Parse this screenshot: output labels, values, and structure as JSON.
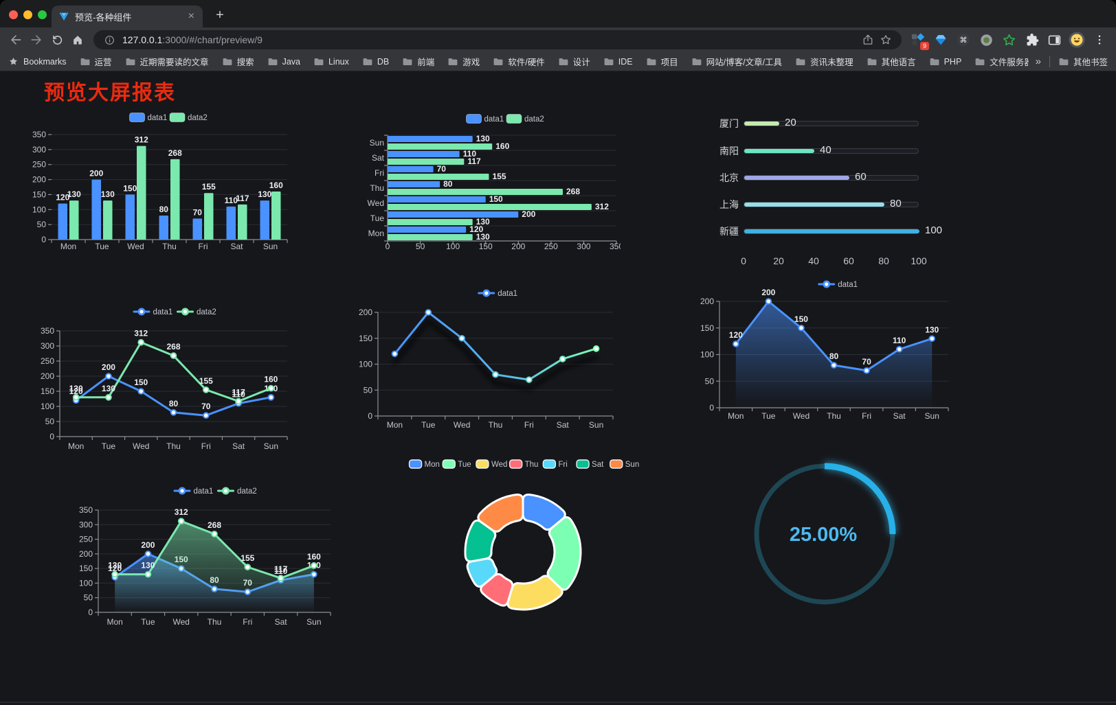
{
  "browser": {
    "tab_title": "预览-各种组件",
    "close_tab_glyph": "×",
    "new_tab_glyph": "+",
    "url_host": "127.0.0.1",
    "url_rest": ":3000/#/chart/preview/9",
    "bookmarks_label": "Bookmarks",
    "bookmark_folders": [
      "运营",
      "近期需要读的文章",
      "搜索",
      "Java",
      "Linux",
      "DB",
      "前端",
      "游戏",
      "软件/硬件",
      "设计",
      "IDE",
      "项目",
      "网站/博客/文章/工具",
      "资讯未整理",
      "其他语言",
      "PHP",
      "文件服务器"
    ],
    "bookmarks_overflow_glyph": "»",
    "other_bookmarks_label": "其他书签",
    "extension_badge": "9"
  },
  "page": {
    "title": "预览大屏报表"
  },
  "colors": {
    "accent_blue": "#4992ff",
    "accent_green": "#7be8ae",
    "title_red": "#e92b10",
    "page_bg": "#16171b"
  },
  "chart_data": [
    {
      "id": "bar-grouped",
      "type": "bar",
      "orientation": "vertical",
      "categories": [
        "Mon",
        "Tue",
        "Wed",
        "Thu",
        "Fri",
        "Sat",
        "Sun"
      ],
      "series": [
        {
          "name": "data1",
          "color": "#4992ff",
          "values": [
            120,
            200,
            150,
            80,
            70,
            110,
            130
          ]
        },
        {
          "name": "data2",
          "color": "#7be8ae",
          "values": [
            130,
            130,
            312,
            268,
            155,
            117,
            160
          ]
        }
      ],
      "ylim": [
        0,
        350
      ],
      "ytick_step": 50,
      "legend_position": "top",
      "value_labels": true,
      "grid": true
    },
    {
      "id": "bar-horizontal",
      "type": "bar",
      "orientation": "horizontal",
      "categories": [
        "Mon",
        "Tue",
        "Wed",
        "Thu",
        "Fri",
        "Sat",
        "Sun"
      ],
      "series": [
        {
          "name": "data1",
          "color": "#4992ff",
          "values": [
            120,
            200,
            150,
            80,
            70,
            110,
            130
          ]
        },
        {
          "name": "data2",
          "color": "#7be8ae",
          "values": [
            130,
            130,
            312,
            268,
            155,
            117,
            160
          ]
        }
      ],
      "xlim": [
        0,
        350
      ],
      "xtick_step": 50,
      "legend_position": "top",
      "value_labels": true,
      "grid": true
    },
    {
      "id": "progress-bars",
      "type": "bar",
      "orientation": "progress",
      "categories": [
        "厦门",
        "南阳",
        "北京",
        "上海",
        "新疆"
      ],
      "values": [
        20,
        40,
        60,
        80,
        100
      ],
      "colors": [
        "#c4ebad",
        "#6be6c1",
        "#a0a7e6",
        "#96dee8",
        "#3fb1e3"
      ],
      "xlim": [
        0,
        100
      ],
      "xticks": [
        0,
        20,
        40,
        60,
        80,
        100
      ],
      "value_labels": true
    },
    {
      "id": "line-two",
      "type": "line",
      "categories": [
        "Mon",
        "Tue",
        "Wed",
        "Thu",
        "Fri",
        "Sat",
        "Sun"
      ],
      "series": [
        {
          "name": "data1",
          "color": "#4992ff",
          "values": [
            120,
            200,
            150,
            80,
            70,
            110,
            130
          ]
        },
        {
          "name": "data2",
          "color": "#7be8ae",
          "values": [
            130,
            130,
            312,
            268,
            155,
            117,
            160
          ]
        }
      ],
      "ylim": [
        0,
        350
      ],
      "ytick_step": 50,
      "legend_position": "top",
      "value_labels": true,
      "grid": true
    },
    {
      "id": "line-gradient",
      "type": "line",
      "categories": [
        "Mon",
        "Tue",
        "Wed",
        "Thu",
        "Fri",
        "Sat",
        "Sun"
      ],
      "series": [
        {
          "name": "data1",
          "color": "#4992ff",
          "color_end": "#7cffb2",
          "gradient": true,
          "shadow": true,
          "values": [
            120,
            200,
            150,
            80,
            70,
            110,
            130
          ]
        }
      ],
      "ylim": [
        0,
        200
      ],
      "ytick_step": 50,
      "legend_position": "top",
      "value_labels": false,
      "grid": true
    },
    {
      "id": "line-area",
      "type": "line",
      "categories": [
        "Mon",
        "Tue",
        "Wed",
        "Thu",
        "Fri",
        "Sat",
        "Sun"
      ],
      "series": [
        {
          "name": "data1",
          "color": "#4992ff",
          "area": true,
          "values": [
            120,
            200,
            150,
            80,
            70,
            110,
            130
          ]
        }
      ],
      "ylim": [
        0,
        200
      ],
      "ytick_step": 50,
      "legend_position": "top",
      "value_labels": true,
      "grid": true
    },
    {
      "id": "line-two-area",
      "type": "line",
      "categories": [
        "Mon",
        "Tue",
        "Wed",
        "Thu",
        "Fri",
        "Sat",
        "Sun"
      ],
      "series": [
        {
          "name": "data1",
          "color": "#4992ff",
          "area": true,
          "values": [
            120,
            200,
            150,
            80,
            70,
            110,
            130
          ]
        },
        {
          "name": "data2",
          "color": "#7be8ae",
          "area": true,
          "values": [
            130,
            130,
            312,
            268,
            155,
            117,
            160
          ]
        }
      ],
      "ylim": [
        0,
        350
      ],
      "ytick_step": 50,
      "legend_position": "top",
      "value_labels": true,
      "grid": true
    },
    {
      "id": "donut",
      "type": "pie",
      "inner_radius_ratio": 0.55,
      "legend_position": "top",
      "categories": [
        "Mon",
        "Tue",
        "Wed",
        "Thu",
        "Fri",
        "Sat",
        "Sun"
      ],
      "values": [
        120,
        200,
        150,
        80,
        70,
        110,
        130
      ],
      "colors": [
        "#4992ff",
        "#7cffb2",
        "#fddd60",
        "#ff6e76",
        "#58d9f9",
        "#05c091",
        "#ff8a45"
      ]
    },
    {
      "id": "gauge",
      "type": "gauge",
      "value": 25,
      "max": 100,
      "label": "25.00%",
      "arc_color": "#27b1e8",
      "track_color": "#1d4754",
      "label_color": "#4db9ef"
    }
  ]
}
